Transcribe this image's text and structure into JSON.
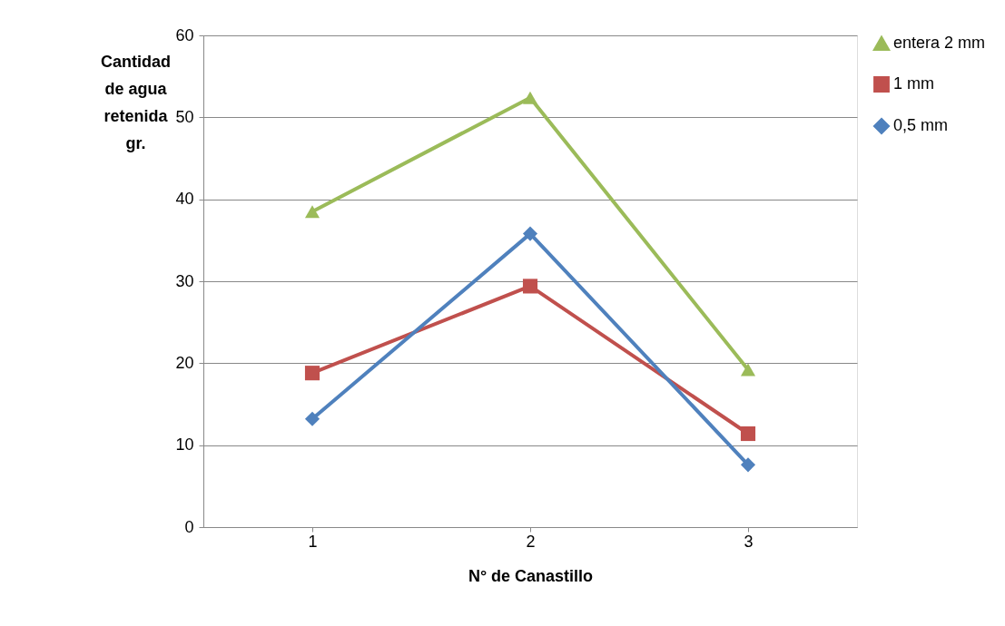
{
  "chart_data": {
    "type": "line",
    "xlabel": "N° de Canastillo",
    "ylabel": "Cantidad de agua retenida gr.",
    "categories": [
      "1",
      "2",
      "3"
    ],
    "series": [
      {
        "name": "entera 2 mm",
        "color": "#9bbb59",
        "marker": "triangle",
        "values": [
          38.5,
          52.4,
          19.2
        ]
      },
      {
        "name": "1 mm",
        "color": "#c0504d",
        "marker": "square",
        "values": [
          18.8,
          29.4,
          11.4
        ]
      },
      {
        "name": "0,5 mm",
        "color": "#4f81bd",
        "marker": "diamond",
        "values": [
          13.2,
          35.8,
          7.6
        ]
      }
    ],
    "ylim": [
      0,
      60
    ],
    "yticks": [
      0,
      10,
      20,
      30,
      40,
      50,
      60
    ],
    "grid": "y",
    "legend": "right",
    "line_style": "solid"
  }
}
